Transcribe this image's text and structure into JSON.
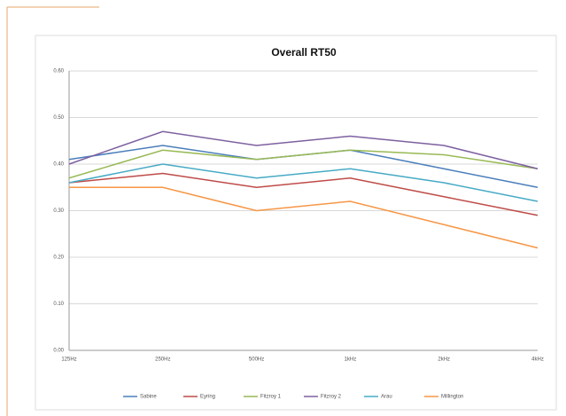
{
  "chart_data": {
    "type": "line",
    "title": "Overall RT50",
    "categories": [
      "125Hz",
      "250Hz",
      "500Hz",
      "1kHz",
      "2kHz",
      "4kHz"
    ],
    "series": [
      {
        "name": "Sabine",
        "color": "#4a7ebb",
        "values": [
          0.41,
          0.44,
          0.41,
          0.43,
          0.39,
          0.35
        ]
      },
      {
        "name": "Eyring",
        "color": "#be4b48",
        "values": [
          0.36,
          0.38,
          0.35,
          0.37,
          0.33,
          0.29
        ]
      },
      {
        "name": "Fitzroy 1",
        "color": "#98b954",
        "values": [
          0.37,
          0.43,
          0.41,
          0.43,
          0.42,
          0.39
        ]
      },
      {
        "name": "Fitzroy 2",
        "color": "#7d60a0",
        "values": [
          0.4,
          0.47,
          0.44,
          0.46,
          0.44,
          0.39
        ]
      },
      {
        "name": "Arau",
        "color": "#46aac5",
        "values": [
          0.36,
          0.4,
          0.37,
          0.39,
          0.36,
          0.32
        ]
      },
      {
        "name": "Millington",
        "color": "#f79646",
        "values": [
          0.35,
          0.35,
          0.3,
          0.32,
          0.27,
          0.22
        ]
      }
    ],
    "ylim": [
      0,
      0.6
    ],
    "yticks": [
      {
        "value": 0,
        "label": "0.00"
      },
      {
        "value": 0.1,
        "label": "0.10"
      },
      {
        "value": 0.2,
        "label": "0.20"
      },
      {
        "value": 0.3,
        "label": "0.30"
      },
      {
        "value": 0.4,
        "label": "0.40"
      },
      {
        "value": 0.5,
        "label": "0.50"
      },
      {
        "value": 0.6,
        "label": "0.60"
      }
    ],
    "grid": true,
    "legend": "bottom"
  }
}
